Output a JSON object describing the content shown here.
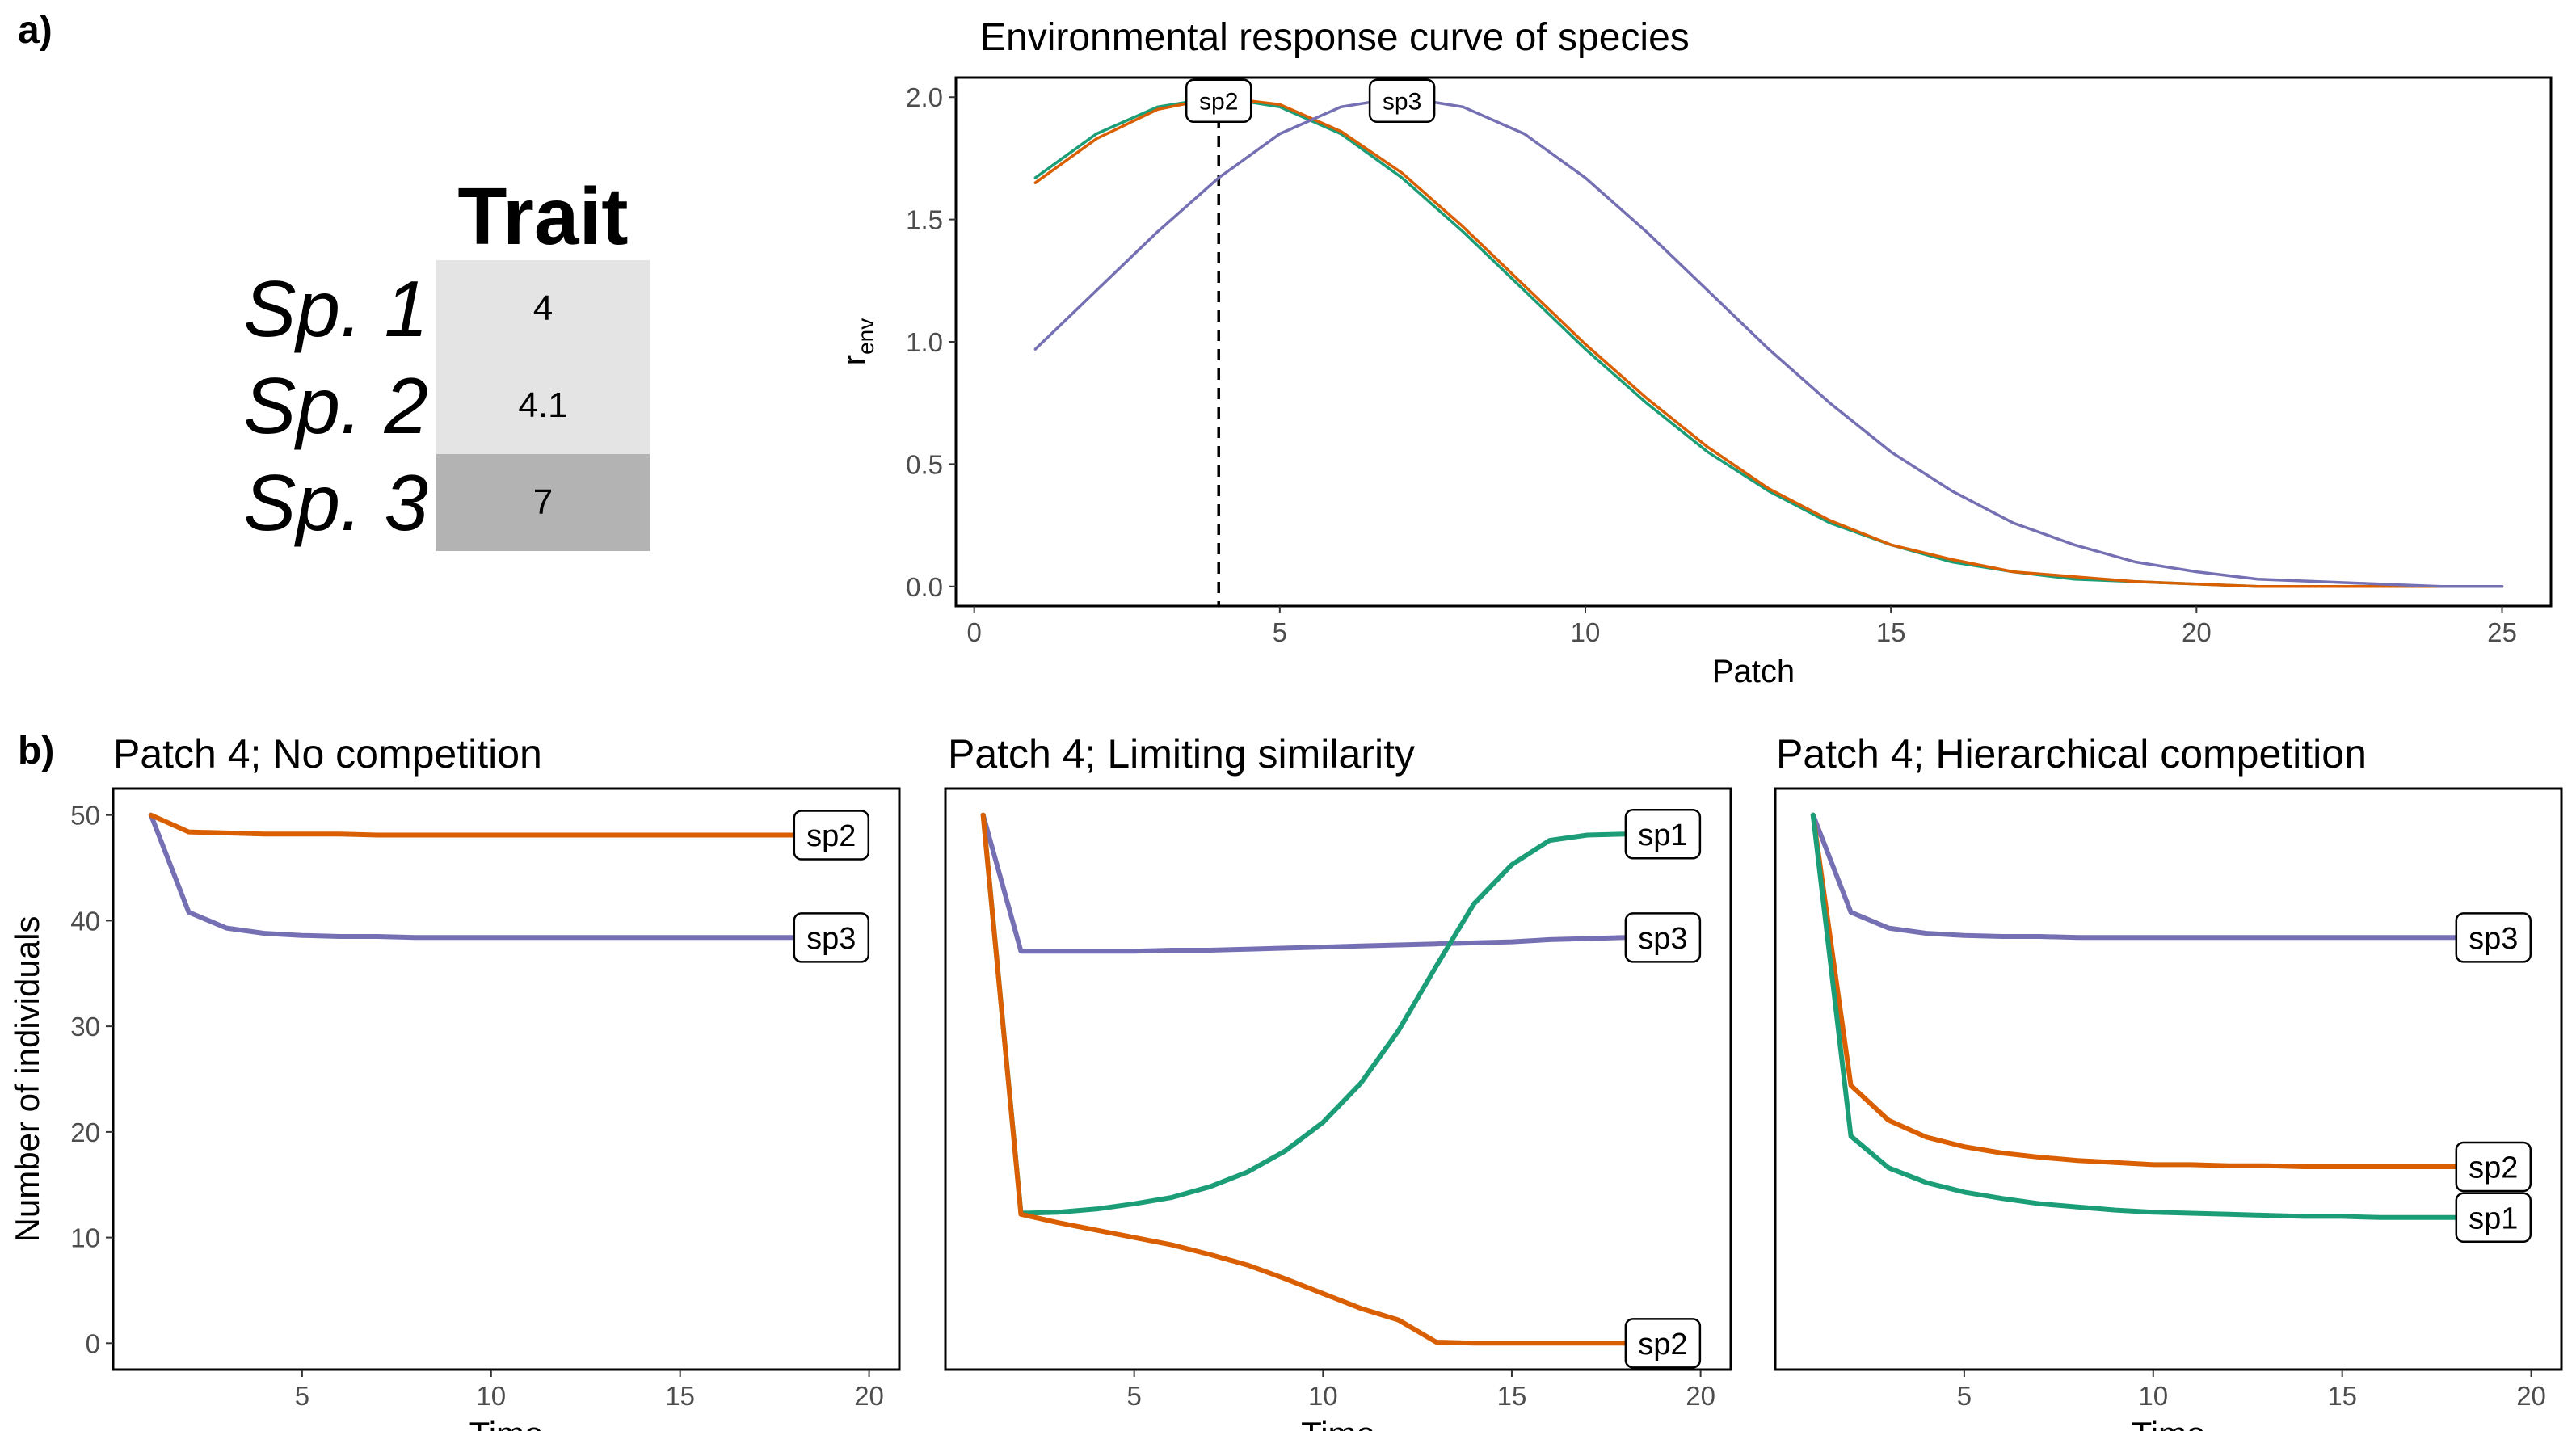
{
  "panel_labels": {
    "a": "a)",
    "b": "b)"
  },
  "colors": {
    "sp1": "#1b9e77",
    "sp2": "#d95f02",
    "sp3": "#7570b3"
  },
  "trait_table": {
    "header": "Trait",
    "rows": [
      {
        "label": "Sp. 1",
        "value": "4",
        "fill": "#e4e4e4"
      },
      {
        "label": "Sp. 2",
        "value": "4.1",
        "fill": "#e4e4e4"
      },
      {
        "label": "Sp. 3",
        "value": "7",
        "fill": "#b3b3b3"
      }
    ]
  },
  "chart_data": [
    {
      "id": "env",
      "type": "line",
      "title": "Environmental response curve of species",
      "xlabel": "Patch",
      "ylabel_main": "r",
      "ylabel_sub": "env",
      "xlim": [
        -0.3,
        25.8
      ],
      "ylim": [
        -0.08,
        2.08
      ],
      "xticks": [
        0,
        5,
        10,
        15,
        20,
        25
      ],
      "yticks": [
        0,
        0.5,
        1,
        1.5,
        2
      ],
      "ytick_labels": [
        "0.0",
        "0.5",
        "1.0",
        "1.5",
        "2.0"
      ],
      "vline_x": 4,
      "x": [
        1,
        2,
        3,
        4,
        5,
        6,
        7,
        8,
        9,
        10,
        11,
        12,
        13,
        14,
        15,
        16,
        17,
        18,
        19,
        20,
        21,
        22,
        23,
        24,
        25
      ],
      "series": [
        {
          "key": "sp1",
          "values": [
            1.67,
            1.85,
            1.96,
            2.0,
            1.96,
            1.85,
            1.67,
            1.45,
            1.21,
            0.97,
            0.75,
            0.55,
            0.39,
            0.26,
            0.17,
            0.1,
            0.06,
            0.03,
            0.02,
            0.01,
            0.0,
            0.0,
            0.0,
            0.0,
            0.0
          ]
        },
        {
          "key": "sp2",
          "values": [
            1.65,
            1.83,
            1.95,
            2.0,
            1.97,
            1.86,
            1.69,
            1.47,
            1.23,
            0.99,
            0.77,
            0.57,
            0.4,
            0.27,
            0.17,
            0.11,
            0.06,
            0.04,
            0.02,
            0.01,
            0.0,
            0.0,
            0.0,
            0.0,
            0.0
          ]
        },
        {
          "key": "sp3",
          "values": [
            0.97,
            1.21,
            1.45,
            1.67,
            1.85,
            1.96,
            2.0,
            1.96,
            1.85,
            1.67,
            1.45,
            1.21,
            0.97,
            0.75,
            0.55,
            0.39,
            0.26,
            0.17,
            0.1,
            0.06,
            0.03,
            0.02,
            0.01,
            0.0,
            0.0
          ]
        }
      ],
      "labels": [
        {
          "text": "sp2",
          "x": 4.0,
          "y": 1.985
        },
        {
          "text": "sp3",
          "x": 7.0,
          "y": 1.985
        }
      ]
    },
    {
      "id": "b1",
      "type": "line",
      "title": "Patch 4; No competition",
      "xlabel": "Time",
      "ylabel": "Number of individuals",
      "show_yticks": true,
      "xlim": [
        0.0,
        20.8
      ],
      "ylim": [
        -2.5,
        52.5
      ],
      "xticks": [
        5,
        10,
        15,
        20
      ],
      "yticks": [
        0,
        10,
        20,
        30,
        40,
        50
      ],
      "x": [
        1,
        2,
        3,
        4,
        5,
        6,
        7,
        8,
        9,
        10,
        11,
        12,
        13,
        14,
        15,
        16,
        17,
        18,
        19
      ],
      "series": [
        {
          "key": "sp3",
          "values": [
            50,
            40.8,
            39.3,
            38.8,
            38.6,
            38.5,
            38.5,
            38.4,
            38.4,
            38.4,
            38.4,
            38.4,
            38.4,
            38.4,
            38.4,
            38.4,
            38.4,
            38.4,
            38.4
          ]
        },
        {
          "key": "sp2",
          "values": [
            50,
            48.4,
            48.3,
            48.2,
            48.2,
            48.2,
            48.1,
            48.1,
            48.1,
            48.1,
            48.1,
            48.1,
            48.1,
            48.1,
            48.1,
            48.1,
            48.1,
            48.1,
            48.1
          ]
        }
      ],
      "labels": [
        {
          "text": "sp2",
          "x": 19.0,
          "y": 48.1
        },
        {
          "text": "sp3",
          "x": 19.0,
          "y": 38.4
        }
      ]
    },
    {
      "id": "b2",
      "type": "line",
      "title": "Patch 4; Limiting similarity",
      "xlabel": "Time",
      "ylabel": "",
      "show_yticks": false,
      "xlim": [
        0.0,
        20.8
      ],
      "ylim": [
        -2.5,
        52.5
      ],
      "xticks": [
        5,
        10,
        15,
        20
      ],
      "yticks": [
        0,
        10,
        20,
        30,
        40,
        50
      ],
      "x": [
        1,
        2,
        3,
        4,
        5,
        6,
        7,
        8,
        9,
        10,
        11,
        12,
        13,
        14,
        15,
        16,
        17,
        18,
        19
      ],
      "series": [
        {
          "key": "sp3",
          "values": [
            50,
            37.1,
            37.1,
            37.1,
            37.1,
            37.2,
            37.2,
            37.3,
            37.4,
            37.5,
            37.6,
            37.7,
            37.8,
            37.9,
            38.0,
            38.2,
            38.3,
            38.4,
            38.4
          ]
        },
        {
          "key": "sp1",
          "values": [
            50,
            12.3,
            12.4,
            12.7,
            13.2,
            13.8,
            14.8,
            16.2,
            18.2,
            20.9,
            24.6,
            29.6,
            35.7,
            41.6,
            45.3,
            47.6,
            48.1,
            48.2,
            48.2
          ]
        },
        {
          "key": "sp2",
          "values": [
            50,
            12.2,
            11.4,
            10.7,
            10.0,
            9.3,
            8.4,
            7.4,
            6.1,
            4.7,
            3.3,
            2.2,
            0.1,
            0.0,
            0.0,
            0.0,
            0.0,
            0.0,
            0.0
          ]
        }
      ],
      "labels": [
        {
          "text": "sp1",
          "x": 19.0,
          "y": 48.2
        },
        {
          "text": "sp3",
          "x": 19.0,
          "y": 38.4
        },
        {
          "text": "sp2",
          "x": 19.0,
          "y": 0.0
        }
      ]
    },
    {
      "id": "b3",
      "type": "line",
      "title": "Patch 4; Hierarchical competition",
      "xlabel": "Time",
      "ylabel": "",
      "show_yticks": false,
      "xlim": [
        0.0,
        20.8
      ],
      "ylim": [
        -2.5,
        52.5
      ],
      "xticks": [
        5,
        10,
        15,
        20
      ],
      "yticks": [
        0,
        10,
        20,
        30,
        40,
        50
      ],
      "x": [
        1,
        2,
        3,
        4,
        5,
        6,
        7,
        8,
        9,
        10,
        11,
        12,
        13,
        14,
        15,
        16,
        17,
        18,
        19
      ],
      "series": [
        {
          "key": "sp3",
          "values": [
            50,
            40.8,
            39.3,
            38.8,
            38.6,
            38.5,
            38.5,
            38.4,
            38.4,
            38.4,
            38.4,
            38.4,
            38.4,
            38.4,
            38.4,
            38.4,
            38.4,
            38.4,
            38.4
          ]
        },
        {
          "key": "sp2",
          "values": [
            50,
            24.4,
            21.1,
            19.5,
            18.6,
            18.0,
            17.6,
            17.3,
            17.1,
            16.9,
            16.9,
            16.8,
            16.8,
            16.7,
            16.7,
            16.7,
            16.7,
            16.7,
            16.7
          ]
        },
        {
          "key": "sp1",
          "values": [
            50,
            19.6,
            16.6,
            15.2,
            14.3,
            13.7,
            13.2,
            12.9,
            12.6,
            12.4,
            12.3,
            12.2,
            12.1,
            12.0,
            12.0,
            11.9,
            11.9,
            11.9,
            11.9
          ]
        }
      ],
      "labels": [
        {
          "text": "sp3",
          "x": 19.0,
          "y": 38.4
        },
        {
          "text": "sp2",
          "x": 19.0,
          "y": 16.7
        },
        {
          "text": "sp1",
          "x": 19.0,
          "y": 11.9
        }
      ]
    }
  ]
}
